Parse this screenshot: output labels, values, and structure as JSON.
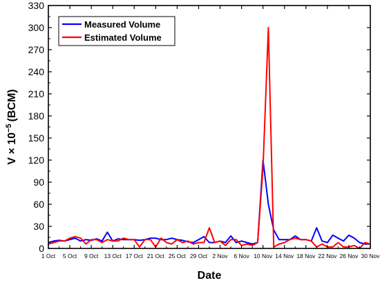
{
  "chart_data": {
    "type": "line",
    "xlabel": "Date",
    "ylabel_main": "V × 10",
    "ylabel_sup": "−5",
    "ylabel_unit": "(BCM)",
    "ylim": [
      0,
      330
    ],
    "yticks": [
      0,
      30,
      60,
      90,
      120,
      150,
      180,
      210,
      240,
      270,
      300,
      330
    ],
    "x_tick_labels": [
      "1 Oct",
      "5 Oct",
      "9 Oct",
      "13 Oct",
      "17 Oct",
      "21 Oct",
      "25 Oct",
      "29 Oct",
      "2 Nov",
      "6 Nov",
      "10 Nov",
      "14 Nov",
      "18 Nov",
      "22 Nov",
      "26 Nov",
      "30 Nov"
    ],
    "x_range_days": [
      1,
      61
    ],
    "legend_position": "top-left",
    "grid": false,
    "series": [
      {
        "name": "Measured Volume",
        "color": "#0000ff",
        "x": [
          1,
          2,
          3,
          4,
          5,
          6,
          7,
          8,
          9,
          10,
          11,
          12,
          13,
          14,
          15,
          16,
          17,
          18,
          19,
          20,
          21,
          22,
          23,
          24,
          25,
          26,
          27,
          28,
          29,
          30,
          31,
          32,
          33,
          34,
          35,
          36,
          37,
          38,
          39,
          40,
          41,
          42,
          43,
          44,
          45,
          46,
          47,
          48,
          49,
          50,
          51,
          52,
          53,
          54,
          55,
          56,
          57,
          58,
          59,
          60,
          61
        ],
        "values": [
          8,
          10,
          11,
          10,
          12,
          14,
          10,
          12,
          11,
          13,
          10,
          22,
          10,
          13,
          12,
          12,
          12,
          11,
          12,
          14,
          14,
          12,
          12,
          14,
          12,
          11,
          9,
          8,
          12,
          16,
          8,
          8,
          10,
          8,
          17,
          8,
          10,
          8,
          6,
          8,
          120,
          60,
          25,
          12,
          12,
          12,
          17,
          12,
          12,
          10,
          28,
          10,
          8,
          18,
          14,
          10,
          18,
          14,
          8,
          6,
          6
        ]
      },
      {
        "name": "Estimated Volume",
        "color": "#ff0000",
        "x": [
          1,
          2,
          3,
          4,
          5,
          6,
          7,
          8,
          9,
          10,
          11,
          12,
          13,
          14,
          15,
          16,
          17,
          18,
          19,
          20,
          21,
          22,
          23,
          24,
          25,
          26,
          27,
          28,
          29,
          30,
          31,
          32,
          33,
          34,
          35,
          36,
          37,
          38,
          39,
          40,
          41,
          42,
          43,
          44,
          45,
          46,
          47,
          48,
          49,
          50,
          51,
          52,
          53,
          54,
          55,
          56,
          57,
          58,
          59,
          60,
          61
        ],
        "values": [
          6,
          8,
          10,
          10,
          14,
          16,
          14,
          6,
          12,
          12,
          8,
          12,
          10,
          10,
          14,
          12,
          12,
          2,
          12,
          12,
          2,
          14,
          8,
          6,
          12,
          8,
          10,
          6,
          8,
          8,
          28,
          8,
          10,
          4,
          12,
          12,
          4,
          6,
          4,
          8,
          110,
          300,
          2,
          6,
          8,
          12,
          14,
          12,
          12,
          10,
          2,
          6,
          2,
          2,
          8,
          2,
          2,
          4,
          0,
          8,
          6
        ]
      }
    ]
  }
}
